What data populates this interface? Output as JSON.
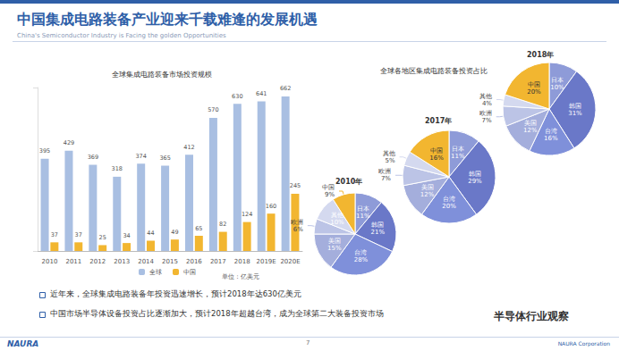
{
  "slide": {
    "title": "中国集成电路装备产业迎来千载难逢的发展机遇",
    "subtitle": "China's Semiconductor Industry is Facing the golden Opportunities",
    "pie_group_title": "全球各地区集成电路装备投资占比",
    "bullets": [
      "近年来，全球集成电路装备年投资迅速增长，预计2018年达630亿美元",
      "中国市场半导体设备投资占比逐渐加大，预计2018年超越台湾，成为全球第二大装备投资市场"
    ],
    "footer_left": "NAURA",
    "page": "7",
    "footer_right": "NAURA Corporation",
    "watermark": "半导体行业观察"
  },
  "chart_data": [
    {
      "type": "bar",
      "title": "全球集成电路装备市场投资规模",
      "annotations": [
        "单位：亿美元"
      ],
      "categories": [
        "2010",
        "2011",
        "2012",
        "2013",
        "2014",
        "2015",
        "2016",
        "2017",
        "2018",
        "2019E",
        "2020E"
      ],
      "series": [
        {
          "name": "全球",
          "color": "#a9bfe2",
          "values": [
            395,
            429,
            369,
            318,
            374,
            365,
            412,
            570,
            630,
            641,
            662
          ]
        },
        {
          "name": "中国",
          "color": "#f2b630",
          "values": [
            37,
            37,
            25,
            34,
            44,
            49,
            65,
            82,
            124,
            160,
            245
          ]
        }
      ],
      "ylim": [
        0,
        700
      ],
      "yticks": [
        0,
        700
      ],
      "grid": false,
      "legend": "bottom",
      "data_labels": true,
      "tick_labels": "x"
    },
    {
      "type": "pie",
      "title": "2010年",
      "categories": [
        "日本",
        "韩国",
        "台湾",
        "美国",
        "欧洲",
        "其他",
        "中国"
      ],
      "values": [
        11,
        21,
        28,
        15,
        6,
        10,
        9
      ],
      "value_labels": [
        "11%",
        "21%",
        "28%",
        "15%",
        "6%",
        "10%",
        "9%"
      ],
      "colors": [
        "#8e9bd8",
        "#6a78c8",
        "#7f90da",
        "#a4aedc",
        "#bcc4e6",
        "#d4d9ef",
        "#f2b630"
      ],
      "data_labels": true
    },
    {
      "type": "pie",
      "title": "2017年",
      "categories": [
        "日本",
        "韩国",
        "台湾",
        "美国",
        "欧洲",
        "其他",
        "中国"
      ],
      "values": [
        11,
        29,
        20,
        12,
        7,
        5,
        16
      ],
      "value_labels": [
        "11%",
        "29%",
        "20%",
        "12%",
        "7%",
        "5%",
        "16%"
      ],
      "colors": [
        "#8e9bd8",
        "#6a78c8",
        "#7f90da",
        "#a4aedc",
        "#bcc4e6",
        "#d4d9ef",
        "#f2b630"
      ],
      "data_labels": true
    },
    {
      "type": "pie",
      "title": "2018年",
      "categories": [
        "日本",
        "韩国",
        "台湾",
        "美国",
        "欧洲",
        "其他",
        "中国"
      ],
      "values": [
        10,
        31,
        16,
        12,
        7,
        4,
        20
      ],
      "value_labels": [
        "10%",
        "31%",
        "16%",
        "12%",
        "7%",
        "4%",
        "20%"
      ],
      "colors": [
        "#8e9bd8",
        "#6a78c8",
        "#7f90da",
        "#a4aedc",
        "#bcc4e6",
        "#d4d9ef",
        "#f2b630"
      ],
      "data_labels": true
    }
  ]
}
